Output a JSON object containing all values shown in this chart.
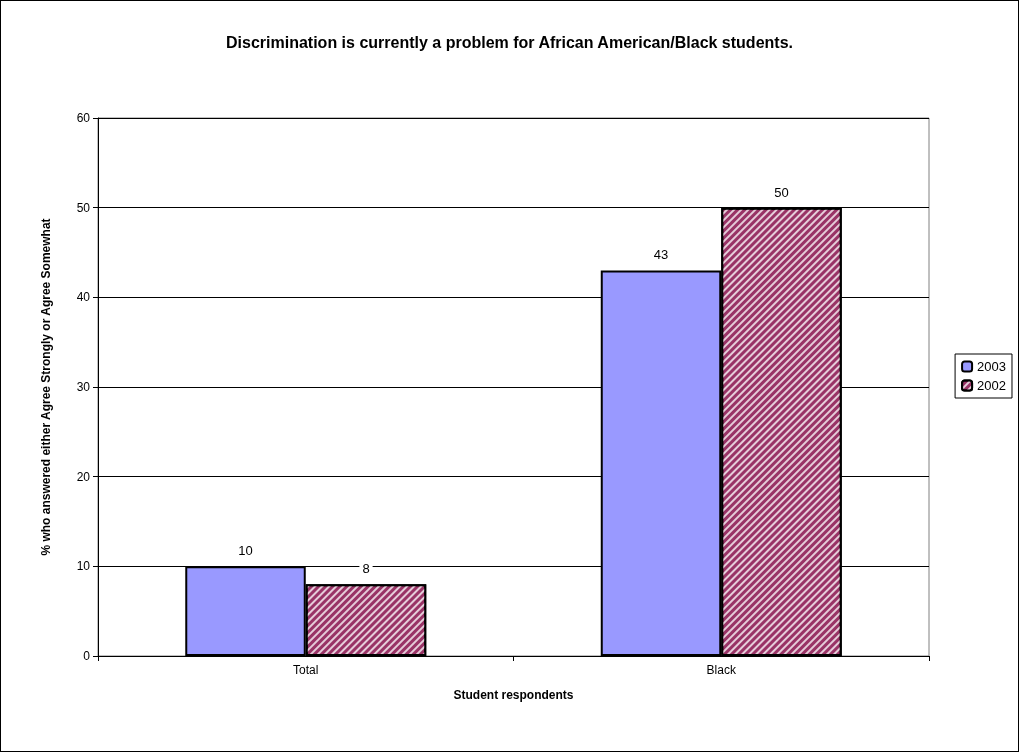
{
  "chart_data": {
    "type": "bar",
    "title": "Discrimination is currently a problem for African American/Black students.",
    "xlabel": "Student respondents",
    "ylabel": "% who answered either Agree Strongly or Agree Somewhat",
    "categories": [
      "Total",
      "Black"
    ],
    "series": [
      {
        "name": "2003",
        "color": "#9999ff",
        "values": [
          10,
          43
        ]
      },
      {
        "name": "2002",
        "color": "#993366",
        "values": [
          8,
          50
        ]
      }
    ],
    "ylim": [
      0,
      60
    ],
    "yticks": [
      0,
      10,
      20,
      30,
      40,
      50,
      60
    ],
    "grid": "y",
    "legend": "right",
    "data_labels": true
  }
}
